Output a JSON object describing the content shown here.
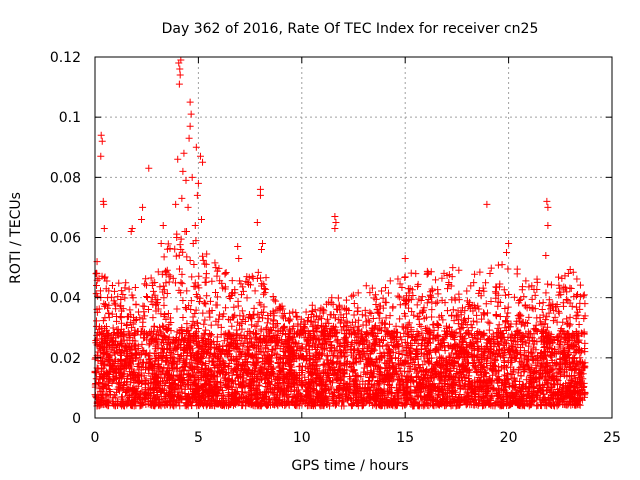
{
  "chart_data": {
    "type": "scatter",
    "title": "Day 362 of 2016, Rate Of TEC Index for receiver cn25",
    "xlabel": "GPS time / hours",
    "ylabel": "ROTI / TECUs",
    "xlim": [
      0,
      25
    ],
    "ylim": [
      0,
      0.12
    ],
    "xticks": [
      0,
      5,
      10,
      15,
      20,
      25
    ],
    "xtick_labels": [
      "0",
      "5",
      "10",
      "15",
      "20",
      "25"
    ],
    "yticks": [
      0,
      0.02,
      0.04,
      0.06,
      0.08,
      0.1,
      0.12
    ],
    "ytick_labels": [
      "0",
      "0.02",
      "0.04",
      "0.06",
      "0.08",
      "0.1",
      "0.12"
    ],
    "grid": true,
    "marker": "+",
    "color": "#ff0000",
    "series": [
      {
        "name": "ROTI",
        "description": "Dense scatter of ROTI values from 0 to ~23.7 hours; bulk between 0.005 and 0.03 TECUs with a disturbed period near 4-5 h.",
        "background_sampling": {
          "x_range": [
            0.0,
            23.7
          ],
          "count": 6000,
          "baseline_range": [
            0.004,
            0.028
          ],
          "upper_envelope": [
            {
              "x": 0.0,
              "y": 0.05
            },
            {
              "x": 1.0,
              "y": 0.045
            },
            {
              "x": 2.0,
              "y": 0.045
            },
            {
              "x": 3.0,
              "y": 0.05
            },
            {
              "x": 4.0,
              "y": 0.065
            },
            {
              "x": 5.0,
              "y": 0.06
            },
            {
              "x": 6.0,
              "y": 0.05
            },
            {
              "x": 7.0,
              "y": 0.046
            },
            {
              "x": 8.0,
              "y": 0.05
            },
            {
              "x": 9.0,
              "y": 0.038
            },
            {
              "x": 10.0,
              "y": 0.035
            },
            {
              "x": 11.0,
              "y": 0.04
            },
            {
              "x": 12.0,
              "y": 0.04
            },
            {
              "x": 13.0,
              "y": 0.045
            },
            {
              "x": 14.0,
              "y": 0.045
            },
            {
              "x": 15.0,
              "y": 0.048
            },
            {
              "x": 16.0,
              "y": 0.05
            },
            {
              "x": 17.0,
              "y": 0.048
            },
            {
              "x": 18.0,
              "y": 0.05
            },
            {
              "x": 19.0,
              "y": 0.05
            },
            {
              "x": 20.0,
              "y": 0.052
            },
            {
              "x": 21.0,
              "y": 0.048
            },
            {
              "x": 22.0,
              "y": 0.045
            },
            {
              "x": 23.0,
              "y": 0.05
            },
            {
              "x": 23.7,
              "y": 0.042
            }
          ]
        },
        "notable_points": [
          {
            "x": 4.05,
            "y": 0.118
          },
          {
            "x": 4.1,
            "y": 0.116
          },
          {
            "x": 4.12,
            "y": 0.114
          },
          {
            "x": 4.08,
            "y": 0.111
          },
          {
            "x": 4.15,
            "y": 0.119
          },
          {
            "x": 4.6,
            "y": 0.105
          },
          {
            "x": 4.65,
            "y": 0.101
          },
          {
            "x": 4.6,
            "y": 0.097
          },
          {
            "x": 4.55,
            "y": 0.093
          },
          {
            "x": 4.9,
            "y": 0.09
          },
          {
            "x": 5.1,
            "y": 0.087
          },
          {
            "x": 5.2,
            "y": 0.085
          },
          {
            "x": 4.3,
            "y": 0.088
          },
          {
            "x": 4.0,
            "y": 0.086
          },
          {
            "x": 4.25,
            "y": 0.082
          },
          {
            "x": 4.4,
            "y": 0.079
          },
          {
            "x": 4.7,
            "y": 0.08
          },
          {
            "x": 5.0,
            "y": 0.078
          },
          {
            "x": 4.95,
            "y": 0.074
          },
          {
            "x": 4.2,
            "y": 0.073
          },
          {
            "x": 3.9,
            "y": 0.071
          },
          {
            "x": 4.5,
            "y": 0.07
          },
          {
            "x": 5.15,
            "y": 0.066
          },
          {
            "x": 4.85,
            "y": 0.064
          },
          {
            "x": 4.35,
            "y": 0.062
          },
          {
            "x": 3.95,
            "y": 0.06
          },
          {
            "x": 4.75,
            "y": 0.058
          },
          {
            "x": 4.15,
            "y": 0.056
          },
          {
            "x": 0.3,
            "y": 0.094
          },
          {
            "x": 0.35,
            "y": 0.092
          },
          {
            "x": 0.28,
            "y": 0.087
          },
          {
            "x": 0.4,
            "y": 0.072
          },
          {
            "x": 0.42,
            "y": 0.071
          },
          {
            "x": 0.45,
            "y": 0.063
          },
          {
            "x": 0.1,
            "y": 0.052
          },
          {
            "x": 0.05,
            "y": 0.048
          },
          {
            "x": 2.6,
            "y": 0.083
          },
          {
            "x": 2.3,
            "y": 0.07
          },
          {
            "x": 2.25,
            "y": 0.066
          },
          {
            "x": 1.8,
            "y": 0.063
          },
          {
            "x": 1.75,
            "y": 0.062
          },
          {
            "x": 3.3,
            "y": 0.064
          },
          {
            "x": 3.2,
            "y": 0.058
          },
          {
            "x": 8.0,
            "y": 0.076
          },
          {
            "x": 8.0,
            "y": 0.074
          },
          {
            "x": 7.85,
            "y": 0.065
          },
          {
            "x": 8.1,
            "y": 0.058
          },
          {
            "x": 8.05,
            "y": 0.056
          },
          {
            "x": 6.9,
            "y": 0.057
          },
          {
            "x": 6.95,
            "y": 0.053
          },
          {
            "x": 11.6,
            "y": 0.067
          },
          {
            "x": 11.65,
            "y": 0.065
          },
          {
            "x": 11.6,
            "y": 0.063
          },
          {
            "x": 18.95,
            "y": 0.071
          },
          {
            "x": 21.85,
            "y": 0.072
          },
          {
            "x": 21.9,
            "y": 0.07
          },
          {
            "x": 21.9,
            "y": 0.064
          },
          {
            "x": 21.8,
            "y": 0.054
          },
          {
            "x": 15.0,
            "y": 0.053
          },
          {
            "x": 20.0,
            "y": 0.058
          },
          {
            "x": 19.9,
            "y": 0.055
          },
          {
            "x": 17.3,
            "y": 0.05
          }
        ]
      }
    ]
  }
}
